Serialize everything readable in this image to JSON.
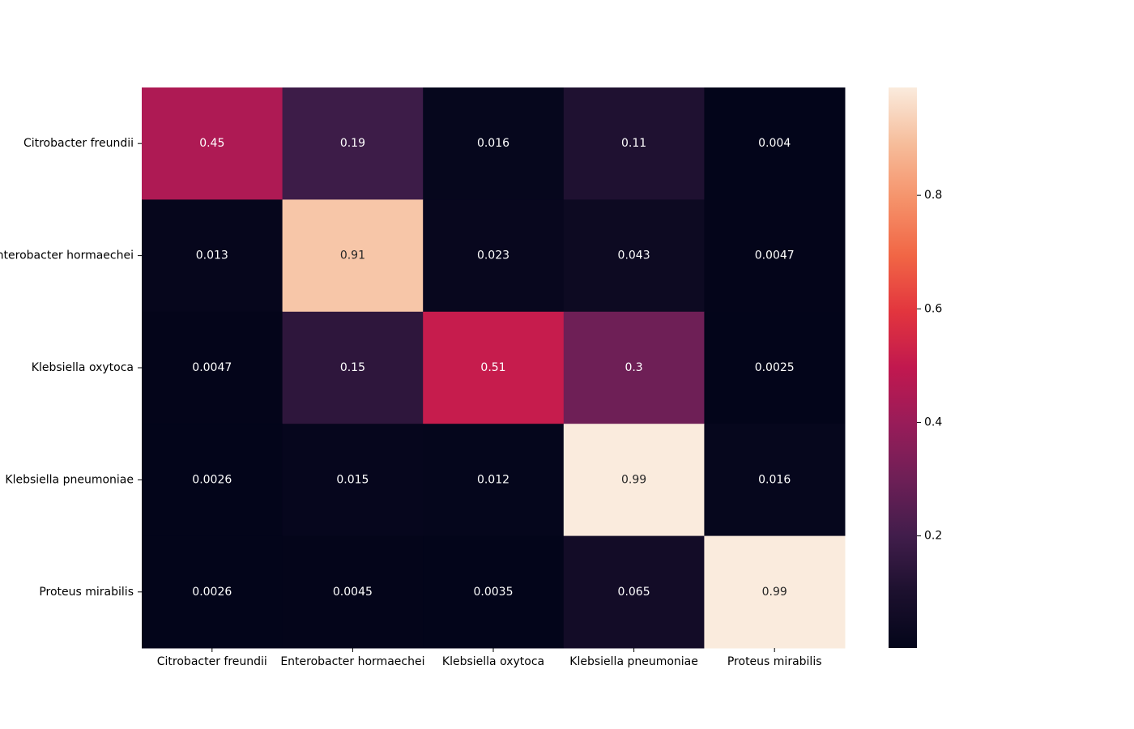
{
  "chart_data": {
    "type": "heatmap",
    "rows": [
      "Citrobacter freundii",
      "Enterobacter hormaechei",
      "Klebsiella oxytoca",
      "Klebsiella pneumoniae",
      "Proteus mirabilis"
    ],
    "columns": [
      "Citrobacter freundii",
      "Enterobacter hormaechei",
      "Klebsiella oxytoca",
      "Klebsiella pneumoniae",
      "Proteus mirabilis"
    ],
    "values": [
      [
        0.45,
        0.19,
        0.016,
        0.11,
        0.004
      ],
      [
        0.013,
        0.91,
        0.023,
        0.043,
        0.0047
      ],
      [
        0.0047,
        0.15,
        0.51,
        0.3,
        0.0025
      ],
      [
        0.0026,
        0.015,
        0.012,
        0.99,
        0.016
      ],
      [
        0.0026,
        0.0045,
        0.0035,
        0.065,
        0.99
      ]
    ],
    "value_labels": [
      [
        "0.45",
        "0.19",
        "0.016",
        "0.11",
        "0.004"
      ],
      [
        "0.013",
        "0.91",
        "0.023",
        "0.043",
        "0.0047"
      ],
      [
        "0.0047",
        "0.15",
        "0.51",
        "0.3",
        "0.0025"
      ],
      [
        "0.0026",
        "0.015",
        "0.012",
        "0.99",
        "0.016"
      ],
      [
        "0.0026",
        "0.0045",
        "0.0035",
        "0.065",
        "0.99"
      ]
    ],
    "colorscale": "rocket",
    "color_range": [
      0.0025,
      0.99
    ],
    "colorbar_ticks": [
      0.2,
      0.4,
      0.6,
      0.8
    ],
    "colorbar_tick_labels": [
      "0.2",
      "0.4",
      "0.6",
      "0.8"
    ],
    "title": "",
    "xlabel": "",
    "ylabel": ""
  }
}
